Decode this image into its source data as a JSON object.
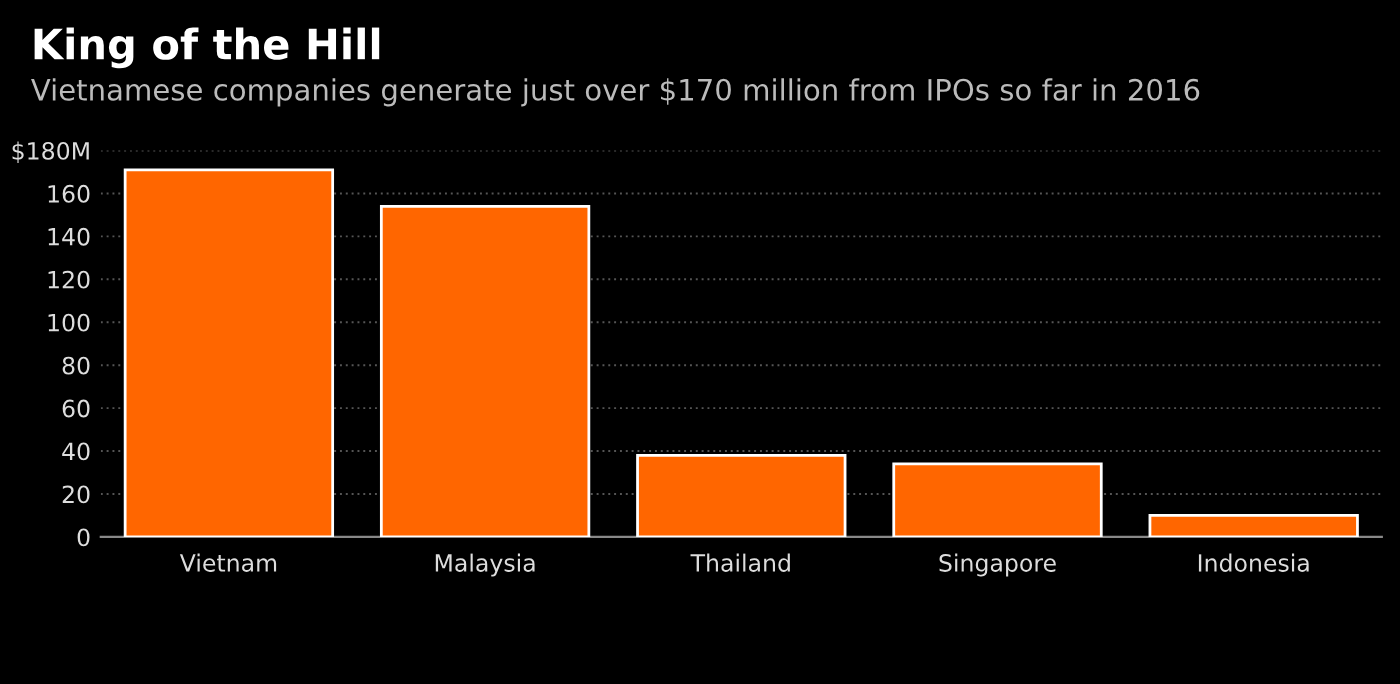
{
  "chart_data": {
    "type": "bar",
    "title": "King of the Hill",
    "subtitle": "Vietnamese companies generate just over $170 million from IPOs so far in 2016",
    "categories": [
      "Vietnam",
      "Malaysia",
      "Thailand",
      "Singapore",
      "Indonesia"
    ],
    "values": [
      171,
      154,
      38,
      34,
      10
    ],
    "color": "#ff6600",
    "ylim": [
      0,
      180
    ],
    "yticks": [
      0,
      20,
      40,
      60,
      80,
      100,
      120,
      140,
      160,
      {
        "value": 180,
        "label": "$180M"
      }
    ],
    "grid": "y"
  }
}
